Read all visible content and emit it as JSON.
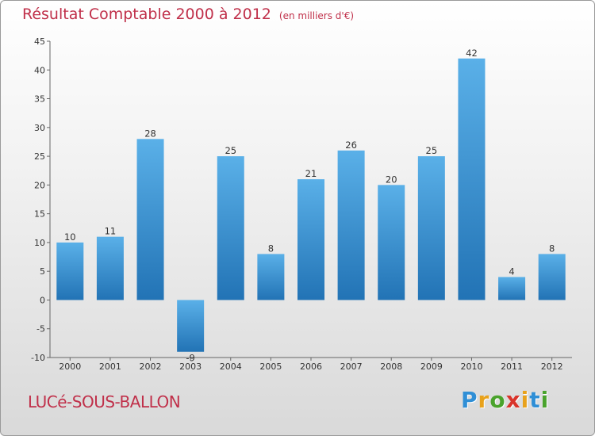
{
  "title": "Résultat Comptable 2000 à 2012",
  "unit_note": "(en milliers d'€)",
  "commune": "LUCé-SOUS-BALLON",
  "brand": {
    "letters": [
      "P",
      "r",
      "o",
      "x",
      "i",
      "t",
      "i"
    ],
    "colors": [
      "#2f8fd6",
      "#e8a21c",
      "#4aa32c",
      "#d9342b",
      "#e8a21c",
      "#2f8fd6",
      "#4aa32c"
    ]
  },
  "colors": {
    "bar_top": "#5ab0e8",
    "bar_bottom": "#2273b5",
    "accent": "#c0304a"
  },
  "chart_data": {
    "type": "bar",
    "categories": [
      "2000",
      "2001",
      "2002",
      "2003",
      "2004",
      "2005",
      "2006",
      "2007",
      "2008",
      "2009",
      "2010",
      "2011",
      "2012"
    ],
    "values": [
      10,
      11,
      28,
      -9,
      25,
      8,
      21,
      26,
      20,
      25,
      42,
      4,
      8
    ],
    "title": "Résultat Comptable 2000 à 2012",
    "xlabel": "",
    "ylabel": "",
    "ylim": [
      -10,
      45
    ],
    "yticks": [
      -10,
      -5,
      0,
      5,
      10,
      15,
      20,
      25,
      30,
      35,
      40,
      45
    ],
    "grid": false,
    "data_labels": true
  }
}
